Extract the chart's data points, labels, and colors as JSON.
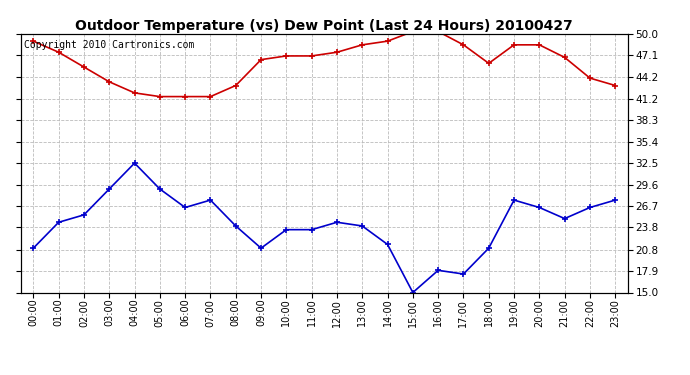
{
  "title": "Outdoor Temperature (vs) Dew Point (Last 24 Hours) 20100427",
  "copyright": "Copyright 2010 Cartronics.com",
  "hours": [
    "00:00",
    "01:00",
    "02:00",
    "03:00",
    "04:00",
    "05:00",
    "06:00",
    "07:00",
    "08:00",
    "09:00",
    "10:00",
    "11:00",
    "12:00",
    "13:00",
    "14:00",
    "15:00",
    "16:00",
    "17:00",
    "18:00",
    "19:00",
    "20:00",
    "21:00",
    "22:00",
    "23:00"
  ],
  "temp_red": [
    49.0,
    47.5,
    45.5,
    43.5,
    42.0,
    41.5,
    41.5,
    41.5,
    43.0,
    46.5,
    47.0,
    47.0,
    47.5,
    48.5,
    49.0,
    50.3,
    50.3,
    48.5,
    46.0,
    48.5,
    48.5,
    46.8,
    44.0,
    43.0
  ],
  "dew_blue": [
    21.0,
    24.5,
    25.5,
    29.0,
    32.5,
    29.0,
    26.5,
    27.5,
    24.0,
    21.0,
    23.5,
    23.5,
    24.5,
    24.0,
    21.5,
    15.0,
    18.0,
    17.5,
    21.0,
    27.5,
    26.5,
    25.0,
    26.5,
    27.5
  ],
  "ylim": [
    15.0,
    50.0
  ],
  "yticks": [
    15.0,
    17.9,
    20.8,
    23.8,
    26.7,
    29.6,
    32.5,
    35.4,
    38.3,
    41.2,
    44.2,
    47.1,
    50.0
  ],
  "temp_color": "#cc0000",
  "dew_color": "#0000cc",
  "bg_color": "#ffffff",
  "grid_color": "#bbbbbb",
  "title_fontsize": 10,
  "copyright_fontsize": 7,
  "tick_fontsize": 7.5,
  "xlabel_fontsize": 7
}
